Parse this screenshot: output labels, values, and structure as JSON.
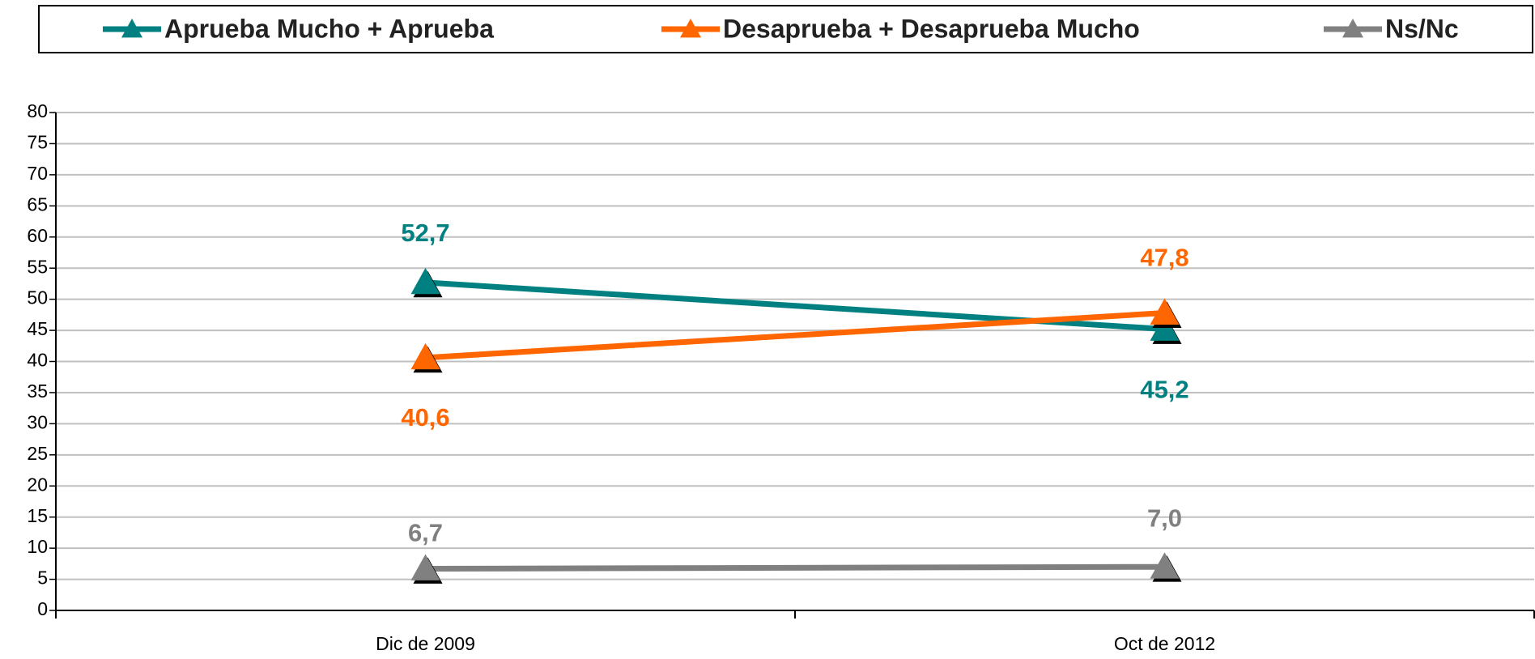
{
  "chart_data": {
    "type": "line",
    "categories": [
      "Dic de 2009",
      "Oct de 2012"
    ],
    "series": [
      {
        "name": "Aprueba Mucho + Aprueba",
        "color": "#008080",
        "values": [
          52.7,
          45.2
        ],
        "value_labels": [
          "52,7",
          "45,2"
        ]
      },
      {
        "name": "Desaprueba + Desaprueba Mucho",
        "color": "#ff6600",
        "values": [
          40.6,
          47.8
        ],
        "value_labels": [
          "40,6",
          "47,8"
        ]
      },
      {
        "name": "Ns/Nc",
        "color": "#808080",
        "values": [
          6.7,
          7.0
        ],
        "value_labels": [
          "6,7",
          "7,0"
        ]
      }
    ],
    "ylim": [
      0,
      80
    ],
    "yticks": [
      0,
      5,
      10,
      15,
      20,
      25,
      30,
      35,
      40,
      45,
      50,
      55,
      60,
      65,
      70,
      75,
      80
    ],
    "grid": true,
    "legend": "top"
  }
}
